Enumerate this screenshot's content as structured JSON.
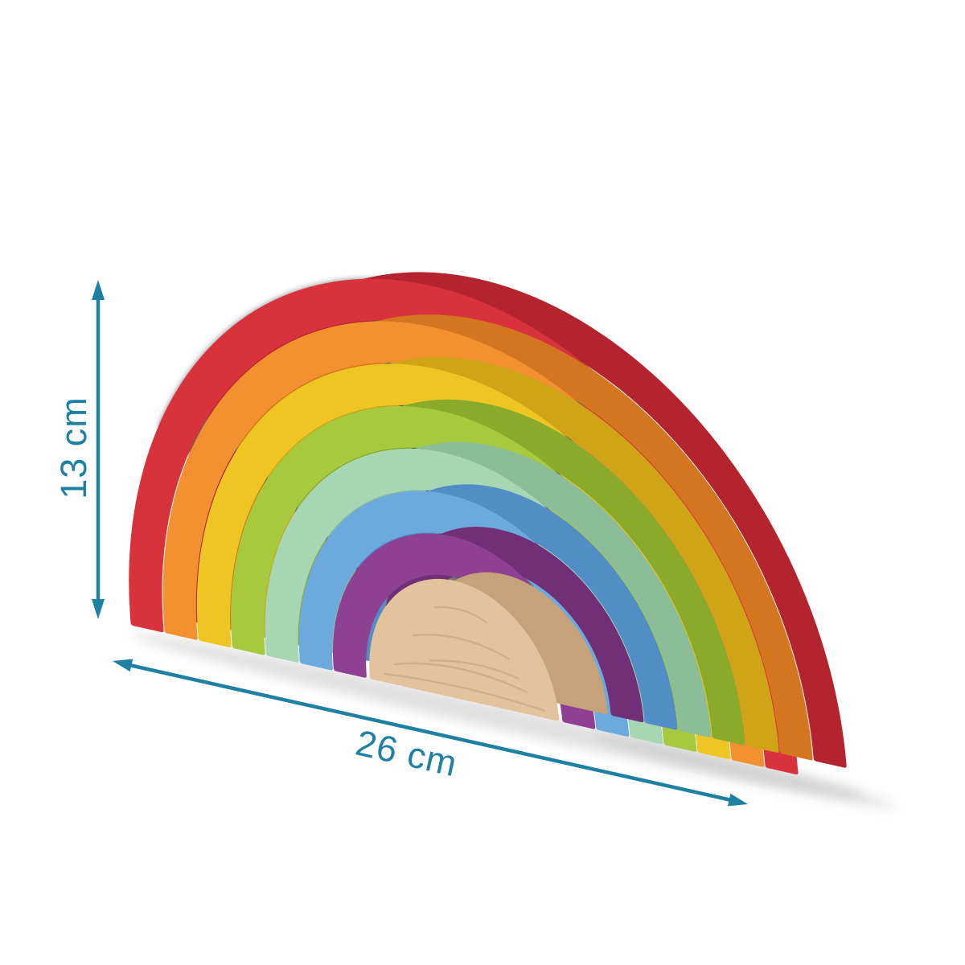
{
  "scene": {
    "background_color": "#ffffff"
  },
  "toy": {
    "pieces": [
      {
        "name": "red-arch",
        "color": "#d8323c",
        "side_color": "#b3242f"
      },
      {
        "name": "orange-arch",
        "color": "#f39130",
        "side_color": "#d4761f"
      },
      {
        "name": "yellow-arch",
        "color": "#eec522",
        "side_color": "#cfa416"
      },
      {
        "name": "green-arch",
        "color": "#a7c93e",
        "side_color": "#8aab29"
      },
      {
        "name": "mint-arch",
        "color": "#a7d6b5",
        "side_color": "#8abd98"
      },
      {
        "name": "blue-arch",
        "color": "#6caade",
        "side_color": "#528ec6"
      },
      {
        "name": "purple-arch",
        "color": "#8e4093",
        "side_color": "#702f77"
      },
      {
        "name": "wood-semicircle",
        "color": "#e2c39d",
        "side_color": "#c5a279"
      }
    ],
    "gap_shadow_color": "#454545",
    "wood_grain_color": "#b28a5d",
    "ground_shadow_color": "#9a9a9a"
  },
  "annotations": {
    "accent_color": "#1e81a4",
    "height": {
      "label": "13 cm"
    },
    "width": {
      "label": "26 cm"
    }
  }
}
